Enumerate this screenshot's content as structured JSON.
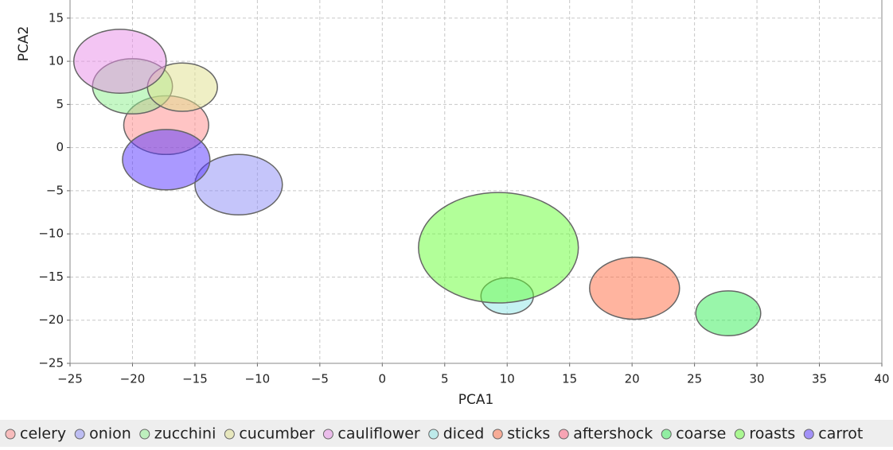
{
  "chart_data": {
    "type": "ellipse",
    "xlabel": "PCA1",
    "ylabel": "PCA2",
    "xlim": [
      -25,
      40
    ],
    "ylim": [
      -25,
      17.1
    ],
    "xticks": [
      {
        "value": -25,
        "label": "−25"
      },
      {
        "value": -20,
        "label": "−20"
      },
      {
        "value": -15,
        "label": "−15"
      },
      {
        "value": -10,
        "label": "−10"
      },
      {
        "value": -5,
        "label": "−5"
      },
      0,
      5,
      10,
      15,
      20,
      25,
      30,
      35,
      40
    ],
    "yticks": [
      {
        "value": -25,
        "label": "−25"
      },
      {
        "value": -20,
        "label": "−20"
      },
      {
        "value": -15,
        "label": "−15"
      },
      {
        "value": -10,
        "label": "−10"
      },
      {
        "value": -5,
        "label": "−5"
      },
      0,
      5,
      10,
      15
    ],
    "grid": true,
    "legend": "bottom",
    "series": [
      {
        "name": "celery",
        "color": "#ff8a8a",
        "x": [
          -17.3
        ],
        "y": [
          2.6
        ],
        "size": [
          3.4
        ]
      },
      {
        "name": "onion",
        "color": "#8c8cf5",
        "x": [
          -11.5
        ],
        "y": [
          -4.3
        ],
        "size": [
          3.5
        ]
      },
      {
        "name": "zucchini",
        "color": "#8cf08c",
        "x": [
          -20
        ],
        "y": [
          7.1
        ],
        "size": [
          3.2
        ]
      },
      {
        "name": "cucumber",
        "color": "#e0e08c",
        "x": [
          -16
        ],
        "y": [
          7
        ],
        "size": [
          2.8
        ]
      },
      {
        "name": "cauliflower",
        "color": "#e88ce8",
        "x": [
          -21
        ],
        "y": [
          10
        ],
        "size": [
          3.7
        ]
      },
      {
        "name": "diced",
        "color": "#8ce6e6",
        "x": [
          10
        ],
        "y": [
          -17.2
        ],
        "size": [
          2.1
        ]
      },
      {
        "name": "sticks",
        "color": "#ff6a40",
        "x": [
          20.2
        ],
        "y": [
          -16.3
        ],
        "size": [
          3.6
        ]
      },
      {
        "name": "aftershock",
        "color": "#ff5a7a",
        "x": [],
        "y": [],
        "size": []
      },
      {
        "name": "coarse",
        "color": "#33ee55",
        "x": [
          27.7
        ],
        "y": [
          -19.2
        ],
        "size": [
          2.6
        ]
      },
      {
        "name": "roasts",
        "color": "#66ff33",
        "x": [
          9.3
        ],
        "y": [
          -11.6
        ],
        "size": [
          6.4
        ]
      },
      {
        "name": "carrot",
        "color": "#5533ff",
        "x": [
          -17.3
        ],
        "y": [
          -1.4
        ],
        "size": [
          3.5
        ]
      }
    ]
  }
}
